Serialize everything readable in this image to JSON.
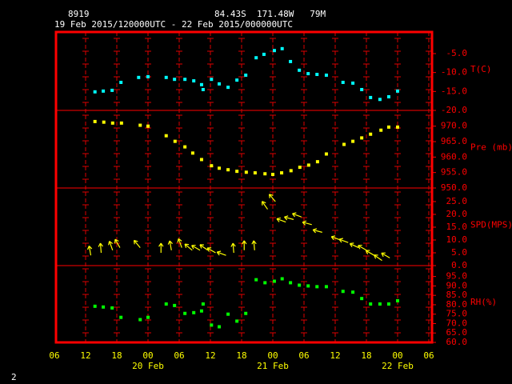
{
  "header": {
    "station": "8919",
    "location": "84.43S  171.48W   79M",
    "period": "19 Feb 2015/120000UTC - 22 Feb 2015/000000UTC",
    "page": "2"
  },
  "x_axis": {
    "xlim": [
      6,
      78
    ],
    "xticks": [
      {
        "value": 6,
        "label": "06"
      },
      {
        "value": 12,
        "label": "12"
      },
      {
        "value": 18,
        "label": "18"
      },
      {
        "value": 24,
        "label": "00"
      },
      {
        "value": 30,
        "label": "06"
      },
      {
        "value": 36,
        "label": "12"
      },
      {
        "value": 42,
        "label": "18"
      },
      {
        "value": 48,
        "label": "00"
      },
      {
        "value": 54,
        "label": "06"
      },
      {
        "value": 60,
        "label": "12"
      },
      {
        "value": 66,
        "label": "18"
      },
      {
        "value": 72,
        "label": "00"
      },
      {
        "value": 78,
        "label": "06"
      }
    ],
    "dates": [
      {
        "value": 24,
        "label": "20 Feb"
      },
      {
        "value": 48,
        "label": "21 Feb"
      },
      {
        "value": 72,
        "label": "22 Feb"
      }
    ]
  },
  "chart_data": [
    {
      "type": "scatter",
      "ylabel": "T(C)",
      "color": "#00ffff",
      "x": [
        13.8,
        15.4,
        17.1,
        18.8,
        22.2,
        24,
        27.5,
        29.1,
        31.1,
        32.8,
        34.3,
        34.6,
        36.2,
        37.7,
        39.4,
        41.1,
        42.8,
        44.8,
        46.3,
        48.3,
        49.8,
        51.4,
        53.1,
        54.8,
        56.5,
        58.3,
        61.5,
        63.4,
        65.1,
        66.8,
        68.6,
        70.3,
        72
      ],
      "values": [
        -15.1,
        -14.9,
        -14.7,
        -12.6,
        -11.3,
        -11.1,
        -11.3,
        -11.8,
        -11.8,
        -12.2,
        -13.2,
        -14.5,
        -11.8,
        -13.0,
        -13.9,
        -12.0,
        -10.7,
        -6.1,
        -5.2,
        -4.2,
        -3.7,
        -7.1,
        -9.4,
        -10.3,
        -10.5,
        -10.7,
        -12.6,
        -12.8,
        -14.5,
        -16.6,
        -17.1,
        -16.4,
        -14.9
      ],
      "ylim": [
        -20,
        0.7
      ],
      "yticks": [
        {
          "value": -5,
          "label": "-5.0"
        },
        {
          "value": -10,
          "label": "-10.0"
        },
        {
          "value": -15,
          "label": "-15.0"
        },
        {
          "value": -20,
          "label": "-20.0"
        }
      ]
    },
    {
      "type": "scatter",
      "ylabel": "Pre (mb)",
      "color": "#ffff00",
      "x": [
        13.8,
        15.5,
        17.2,
        18.9,
        22.5,
        24,
        27.5,
        29.2,
        31.1,
        32.6,
        34.3,
        36.2,
        37.7,
        39.4,
        41.1,
        42.9,
        44.6,
        46.5,
        48,
        49.7,
        51.5,
        53.2,
        54.9,
        56.6,
        58.3,
        61.7,
        63.4,
        65.1,
        66.8,
        68.8,
        70.3,
        72
      ],
      "values": [
        971.5,
        971.3,
        971.0,
        971.0,
        970.3,
        970.0,
        966.9,
        965.1,
        963.3,
        961.3,
        959.2,
        957.2,
        956.4,
        955.9,
        955.4,
        955.1,
        954.9,
        954.6,
        954.4,
        954.9,
        955.6,
        956.7,
        957.4,
        958.5,
        961.0,
        964.1,
        965.1,
        966.2,
        967.4,
        968.7,
        969.7,
        969.7
      ],
      "ylim": [
        950,
        975.1
      ],
      "yticks": [
        {
          "value": 970,
          "label": "970.0"
        },
        {
          "value": 965,
          "label": "965.0"
        },
        {
          "value": 960,
          "label": "960.0"
        },
        {
          "value": 955,
          "label": "955.0"
        },
        {
          "value": 950,
          "label": "950.0"
        }
      ]
    },
    {
      "type": "vector",
      "ylabel": "SPD(MPS)",
      "color": "#ffff00",
      "x": [
        13,
        15,
        17.2,
        18.6,
        22.5,
        26.5,
        28.5,
        30.5,
        32.5,
        34,
        35.5,
        37,
        39,
        40.5,
        42.5,
        44.5,
        47,
        48.5,
        50.5,
        52,
        53.5,
        55.5,
        57.5,
        61,
        62.5,
        64.5,
        66,
        67.5,
        69,
        70.5
      ],
      "values": [
        4,
        5,
        6,
        7,
        7,
        5,
        6,
        7,
        6,
        6,
        6,
        5,
        4,
        5,
        6,
        6,
        22,
        25,
        17,
        18,
        19,
        16,
        13,
        10,
        9,
        7,
        6,
        4,
        2,
        3
      ],
      "directions": [
        100,
        95,
        110,
        120,
        130,
        90,
        100,
        110,
        140,
        150,
        145,
        150,
        160,
        95,
        90,
        95,
        125,
        130,
        160,
        165,
        160,
        165,
        165,
        160,
        160,
        155,
        150,
        150,
        145,
        150
      ],
      "ylim": [
        0,
        30.3
      ],
      "yticks": [
        {
          "value": 0,
          "label": "0.0"
        },
        {
          "value": 5,
          "label": "5.0"
        },
        {
          "value": 10,
          "label": "10.0"
        },
        {
          "value": 15,
          "label": "15.0"
        },
        {
          "value": 20,
          "label": "20.0"
        },
        {
          "value": 25,
          "label": "25.0"
        }
      ]
    },
    {
      "type": "scatter",
      "ylabel": "RH(%)",
      "color": "#00ff00",
      "x": [
        13.8,
        15.4,
        17.1,
        18.8,
        22.5,
        24,
        27.5,
        29.1,
        31.1,
        32.8,
        34.3,
        34.6,
        36.2,
        37.7,
        39.4,
        41.1,
        42.8,
        44.8,
        46.5,
        48.3,
        49.8,
        51.4,
        53.1,
        54.8,
        56.5,
        58.3,
        61.5,
        63.4,
        65.1,
        66.8,
        68.6,
        70.3,
        72
      ],
      "values": [
        79.2,
        78.8,
        78.3,
        73.3,
        72.1,
        73.3,
        80.4,
        79.6,
        75.4,
        75.8,
        76.7,
        80.4,
        69.2,
        68.3,
        75.0,
        71.3,
        75.4,
        93.3,
        91.7,
        92.5,
        93.8,
        91.7,
        90.4,
        90.0,
        89.6,
        89.6,
        87.1,
        86.7,
        83.3,
        80.4,
        80.4,
        80.4,
        82.1
      ],
      "ylim": [
        60,
        100.8
      ],
      "yticks": [
        {
          "value": 95,
          "label": "95.0"
        },
        {
          "value": 90,
          "label": "90.0"
        },
        {
          "value": 85,
          "label": "85.0"
        },
        {
          "value": 80,
          "label": "80.0"
        },
        {
          "value": 75,
          "label": "75.0"
        },
        {
          "value": 70,
          "label": "70.0"
        },
        {
          "value": 65,
          "label": "65.0"
        },
        {
          "value": 60,
          "label": "60.0"
        }
      ]
    }
  ]
}
